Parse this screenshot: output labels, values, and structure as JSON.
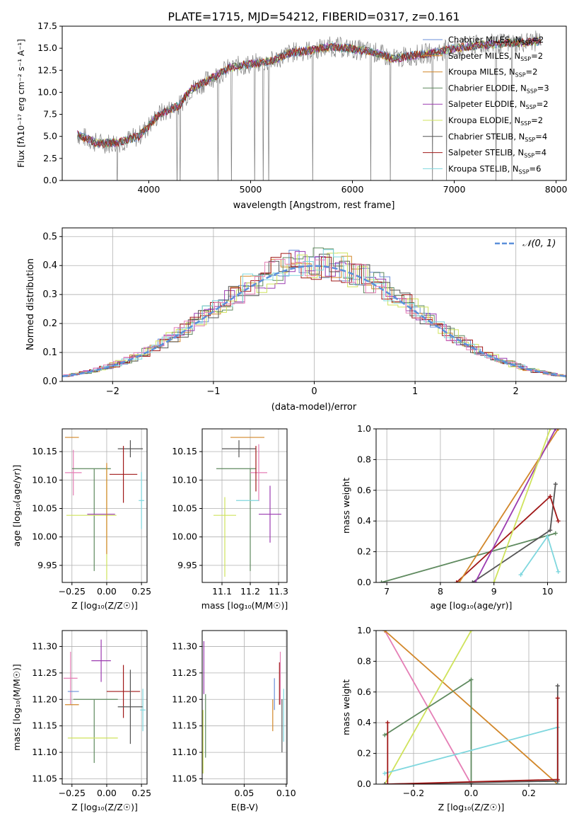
{
  "colors": {
    "Chabrier MILES": "#6a8fd9",
    "Salpeter MILES": "#e48c2f",
    "Kroupa MILES": "#d2872a",
    "Chabrier ELODIE": "#5f8a5f",
    "Salpeter ELODIE": "#9b3bb0",
    "Kroupa ELODIE": "#cfe35c",
    "Chabrier STELIB": "#555555",
    "Salpeter STELIB": "#a01818",
    "Kroupa STELIB": "#7fd7de",
    "pink": "#e57fb6",
    "normal": "#5b8fd9"
  },
  "series_names": [
    "Chabrier MILES",
    "Salpeter MILES",
    "Kroupa MILES",
    "Chabrier ELODIE",
    "Salpeter ELODIE",
    "Kroupa ELODIE",
    "Chabrier STELIB",
    "Salpeter STELIB",
    "Kroupa STELIB"
  ],
  "spectrum": {
    "title": "PLATE=1715, MJD=54212, FIBERID=0317, z=0.161",
    "xlabel": "wavelength [Angstrom, rest frame]",
    "ylabel": "Flux [fλ10⁻¹⁷ erg cm⁻² s⁻¹ A⁻¹]",
    "xticks": [
      "4000",
      "5000",
      "6000",
      "7000",
      "8000"
    ],
    "yticks": [
      "0.0",
      "2.5",
      "5.0",
      "7.5",
      "10.0",
      "12.5",
      "15.0",
      "17.5"
    ],
    "legend": [
      {
        "base": "Chabrier MILES, N",
        "sub": "SSP",
        "tail": "=2"
      },
      {
        "base": "Salpeter MILES, N",
        "sub": "SSP",
        "tail": "=2"
      },
      {
        "base": "Kroupa MILES, N",
        "sub": "SSP",
        "tail": "=2"
      },
      {
        "base": "Chabrier ELODIE, N",
        "sub": "SSP",
        "tail": "=3"
      },
      {
        "base": "Salpeter ELODIE, N",
        "sub": "SSP",
        "tail": "=2"
      },
      {
        "base": "Kroupa ELODIE, N",
        "sub": "SSP",
        "tail": "=2"
      },
      {
        "base": "Chabrier STELIB, N",
        "sub": "SSP",
        "tail": "=4"
      },
      {
        "base": "Salpeter STELIB, N",
        "sub": "SSP",
        "tail": "=4"
      },
      {
        "base": "Kroupa STELIB, N",
        "sub": "SSP",
        "tail": "=6"
      }
    ]
  },
  "histogram": {
    "xlabel": "(data-model)/error",
    "ylabel": "Normed distribution",
    "legend_label": "𝒩(0, 1)",
    "xticks": [
      "−2",
      "−1",
      "0",
      "1",
      "2"
    ],
    "yticks": [
      "0.0",
      "0.1",
      "0.2",
      "0.3",
      "0.4",
      "0.5"
    ]
  },
  "panels": {
    "age_vs_Z": {
      "xlabel": "Z [log₁₀(Z/Z☉)]",
      "ylabel": "age  [log₁₀(age/yr)]",
      "xticks": [
        "−0.25",
        "0.00",
        "0.25"
      ],
      "yticks": [
        "9.95",
        "10.00",
        "10.05",
        "10.10",
        "10.15"
      ]
    },
    "age_vs_mass": {
      "xlabel": "mass [log₁₀(M/M☉)]",
      "xticks": [
        "11.1",
        "11.2",
        "11.3"
      ],
      "yticks": [
        "9.95",
        "10.00",
        "10.05",
        "10.10",
        "10.15"
      ]
    },
    "weight_vs_age": {
      "xlabel": "age  [log₁₀(age/yr)]",
      "ylabel": "mass weight",
      "xticks": [
        "7",
        "8",
        "9",
        "10"
      ],
      "yticks": [
        "0.0",
        "0.2",
        "0.4",
        "0.6",
        "0.8",
        "1.0"
      ]
    },
    "mass_vs_Z": {
      "xlabel": "Z [log₁₀(Z/Z☉)]",
      "ylabel": "mass [log₁₀(M/M☉)]",
      "xticks": [
        "−0.25",
        "0.00",
        "0.25"
      ],
      "yticks": [
        "11.05",
        "11.10",
        "11.15",
        "11.20",
        "11.25",
        "11.30"
      ]
    },
    "mass_vs_EBV": {
      "xlabel": "E(B-V)",
      "xticks": [
        "0.05",
        "0.10"
      ],
      "yticks": [
        "11.05",
        "11.10",
        "11.15",
        "11.20",
        "11.25",
        "11.30"
      ]
    },
    "weight_vs_Z": {
      "xlabel": "Z [log₁₀(Z/Z☉)]",
      "ylabel": "mass weight",
      "xticks": [
        "−0.2",
        "0.0",
        "0.2"
      ],
      "yticks": [
        "0.0",
        "0.2",
        "0.4",
        "0.6",
        "0.8",
        "1.0"
      ]
    }
  },
  "chart_data": [
    {
      "type": "line",
      "title": "PLATE=1715, MJD=54212, FIBERID=0317, z=0.161",
      "xlabel": "wavelength [Angstrom, rest frame]",
      "ylabel": "Flux",
      "xlim": [
        3150,
        8100
      ],
      "ylim": [
        0,
        17.5
      ],
      "continuum": [
        [
          3300,
          5.2
        ],
        [
          3500,
          4.2
        ],
        [
          3700,
          4.3
        ],
        [
          3900,
          5.0
        ],
        [
          4000,
          6.2
        ],
        [
          4100,
          7.5
        ],
        [
          4300,
          8.5
        ],
        [
          4400,
          10.2
        ],
        [
          4600,
          11.5
        ],
        [
          4800,
          12.8
        ],
        [
          5000,
          13.2
        ],
        [
          5200,
          13.5
        ],
        [
          5400,
          14.5
        ],
        [
          5600,
          14.8
        ],
        [
          5800,
          15.2
        ],
        [
          6000,
          14.9
        ],
        [
          6200,
          14.6
        ],
        [
          6400,
          13.8
        ],
        [
          6600,
          14.2
        ],
        [
          6800,
          14.5
        ],
        [
          7000,
          15.0
        ],
        [
          7200,
          15.3
        ],
        [
          7400,
          15.5
        ],
        [
          7600,
          15.6
        ],
        [
          7800,
          15.8
        ]
      ],
      "series": [
        "Chabrier MILES",
        "Salpeter MILES",
        "Kroupa MILES",
        "Chabrier ELODIE",
        "Salpeter ELODIE",
        "Kroupa ELODIE",
        "Chabrier STELIB",
        "Salpeter STELIB",
        "Kroupa STELIB"
      ]
    },
    {
      "type": "bar",
      "xlabel": "(data-model)/error",
      "ylabel": "Normed distribution",
      "xlim": [
        -2.5,
        2.5
      ],
      "ylim": [
        0,
        0.53
      ],
      "bins": 50,
      "reference": "N(0,1)"
    },
    {
      "type": "scatter",
      "panel": "age_vs_Z",
      "xlim": [
        -0.32,
        0.29
      ],
      "ylim": [
        9.92,
        10.19
      ],
      "points": [
        {
          "series": "Kroupa MILES",
          "x": -0.25,
          "xerr": 0.05,
          "y": 10.175,
          "yerr": 0.0
        },
        {
          "series": "pink",
          "x": -0.24,
          "xerr": 0.06,
          "y": 10.113,
          "yerr": 0.04
        },
        {
          "series": "Chabrier ELODIE",
          "x": -0.11,
          "xerr": 0.14,
          "y": 10.12,
          "yerr": 0.0
        },
        {
          "series": "Chabrier ELODIE",
          "x": -0.09,
          "xerr": 0.0,
          "y": 10.03,
          "yerr": 0.09
        },
        {
          "series": "Kroupa ELODIE",
          "x": -0.11,
          "xerr": 0.18,
          "y": 10.038,
          "yerr": 0.0
        },
        {
          "series": "Kroupa ELODIE",
          "x": 0.0,
          "xerr": 0.0,
          "y": 10.025,
          "yerr": 0.1
        },
        {
          "series": "Salpeter ELODIE",
          "x": -0.04,
          "xerr": 0.1,
          "y": 10.04,
          "yerr": 0.0
        },
        {
          "series": "Kroupa MILES",
          "x": 0.0,
          "xerr": 0.0,
          "y": 10.05,
          "yerr": 0.08
        },
        {
          "series": "Chabrier STELIB",
          "x": 0.17,
          "xerr": 0.09,
          "y": 10.155,
          "yerr": 0.015
        },
        {
          "series": "Salpeter STELIB",
          "x": 0.12,
          "xerr": 0.1,
          "y": 10.11,
          "yerr": 0.05
        },
        {
          "series": "Kroupa STELIB",
          "x": 0.25,
          "xerr": 0.02,
          "y": 10.064,
          "yerr": 0.05
        }
      ]
    },
    {
      "type": "scatter",
      "panel": "age_vs_mass",
      "xlim": [
        11.03,
        11.33
      ],
      "ylim": [
        9.92,
        10.19
      ],
      "points": [
        {
          "series": "Kroupa MILES",
          "x": 11.19,
          "xerr": 0.06,
          "y": 10.175,
          "yerr": 0.0
        },
        {
          "series": "Chabrier STELIB",
          "x": 11.16,
          "xerr": 0.06,
          "y": 10.155,
          "yerr": 0.015
        },
        {
          "series": "Chabrier ELODIE",
          "x": 11.15,
          "xerr": 0.07,
          "y": 10.12,
          "yerr": 0.0
        },
        {
          "series": "Chabrier ELODIE",
          "x": 11.2,
          "xerr": 0.0,
          "y": 10.03,
          "yerr": 0.09
        },
        {
          "series": "pink",
          "x": 11.23,
          "xerr": 0.03,
          "y": 10.113,
          "yerr": 0.05
        },
        {
          "series": "Salpeter ELODIE",
          "x": 11.27,
          "xerr": 0.04,
          "y": 10.04,
          "yerr": 0.05
        },
        {
          "series": "Kroupa ELODIE",
          "x": 11.11,
          "xerr": 0.04,
          "y": 10.038,
          "yerr": 0.0
        },
        {
          "series": "Kroupa ELODIE",
          "x": 11.11,
          "xerr": 0.0,
          "y": 10.0,
          "yerr": 0.07
        },
        {
          "series": "Kroupa STELIB",
          "x": 11.19,
          "xerr": 0.04,
          "y": 10.064,
          "yerr": 0.0
        },
        {
          "series": "Salpeter STELIB",
          "x": 11.22,
          "xerr": 0.0,
          "y": 10.12,
          "yerr": 0.04
        }
      ]
    },
    {
      "type": "line",
      "panel": "weight_vs_age",
      "xlim": [
        6.8,
        10.35
      ],
      "ylim": [
        0,
        1
      ],
      "series": [
        {
          "name": "Chabrier ELODIE",
          "x": [
            6.9,
            10.15
          ],
          "y": [
            0.0,
            0.32
          ]
        },
        {
          "name": "Chabrier STELIB",
          "x": [
            8.6,
            10.05,
            10.15
          ],
          "y": [
            0.0,
            0.34,
            0.64
          ]
        },
        {
          "name": "Salpeter STELIB",
          "x": [
            8.3,
            10.05,
            10.2
          ],
          "y": [
            0.0,
            0.56,
            0.4
          ]
        },
        {
          "name": "Kroupa MILES",
          "x": [
            8.35,
            10.2
          ],
          "y": [
            0.0,
            1.0
          ]
        },
        {
          "name": "Salpeter ELODIE",
          "x": [
            8.65,
            10.15
          ],
          "y": [
            0.0,
            1.0
          ]
        },
        {
          "name": "Kroupa ELODIE",
          "x": [
            9.0,
            10.05
          ],
          "y": [
            0.0,
            1.0
          ]
        },
        {
          "name": "Kroupa STELIB",
          "x": [
            9.5,
            10.0,
            10.2
          ],
          "y": [
            0.05,
            0.3,
            0.07
          ]
        }
      ]
    },
    {
      "type": "scatter",
      "panel": "mass_vs_Z",
      "xlim": [
        -0.32,
        0.29
      ],
      "ylim": [
        11.04,
        11.33
      ],
      "points": [
        {
          "series": "pink",
          "x": -0.26,
          "xerr": 0.05,
          "y": 11.24,
          "yerr": 0.05
        },
        {
          "series": "Chabrier MILES",
          "x": -0.24,
          "xerr": 0.04,
          "y": 11.215,
          "yerr": 0.0
        },
        {
          "series": "Kroupa MILES",
          "x": -0.25,
          "xerr": 0.05,
          "y": 11.19,
          "yerr": 0.0
        },
        {
          "series": "Chabrier ELODIE",
          "x": -0.08,
          "xerr": 0.16,
          "y": 11.2,
          "yerr": 0.0
        },
        {
          "series": "Chabrier ELODIE",
          "x": -0.09,
          "xerr": 0.0,
          "y": 11.14,
          "yerr": 0.06
        },
        {
          "series": "Salpeter ELODIE",
          "x": -0.04,
          "xerr": 0.07,
          "y": 11.273,
          "yerr": 0.04
        },
        {
          "series": "Kroupa ELODIE",
          "x": -0.1,
          "xerr": 0.18,
          "y": 11.127,
          "yerr": 0.0
        },
        {
          "series": "Salpeter STELIB",
          "x": 0.12,
          "xerr": 0.12,
          "y": 11.215,
          "yerr": 0.05
        },
        {
          "series": "Chabrier STELIB",
          "x": 0.17,
          "xerr": 0.09,
          "y": 11.186,
          "yerr": 0.07
        },
        {
          "series": "Kroupa STELIB",
          "x": 0.26,
          "xerr": 0.02,
          "y": 11.18,
          "yerr": 0.04
        }
      ]
    },
    {
      "type": "scatter",
      "panel": "mass_vs_EBV",
      "xlim": [
        0.0,
        0.101
      ],
      "ylim": [
        11.04,
        11.33
      ],
      "points": [
        {
          "series": "Salpeter ELODIE",
          "x": 0.002,
          "y": 11.26,
          "yerr": 0.05
        },
        {
          "series": "Chabrier ELODIE",
          "x": 0.004,
          "y": 11.15,
          "yerr": 0.06
        },
        {
          "series": "Kroupa ELODIE",
          "x": 0.001,
          "y": 11.12,
          "yerr": 0.06
        },
        {
          "series": "Kroupa MILES",
          "x": 0.084,
          "y": 11.17,
          "yerr": 0.03
        },
        {
          "series": "Chabrier MILES",
          "x": 0.086,
          "y": 11.21,
          "yerr": 0.03
        },
        {
          "series": "Salpeter STELIB",
          "x": 0.092,
          "y": 11.23,
          "yerr": 0.04
        },
        {
          "series": "pink",
          "x": 0.093,
          "y": 11.24,
          "yerr": 0.05
        },
        {
          "series": "Chabrier STELIB",
          "x": 0.095,
          "y": 11.15,
          "yerr": 0.05
        },
        {
          "series": "Kroupa STELIB",
          "x": 0.097,
          "y": 11.17,
          "yerr": 0.05
        }
      ]
    },
    {
      "type": "line",
      "panel": "weight_vs_Z",
      "xlim": [
        -0.33,
        0.33
      ],
      "ylim": [
        0,
        1
      ],
      "series": [
        {
          "name": "pink",
          "x": [
            -0.3,
            0.0
          ],
          "y": [
            1.0,
            0.0
          ]
        },
        {
          "name": "Kroupa MILES",
          "x": [
            -0.3,
            0.3
          ],
          "y": [
            1.0,
            0.0
          ]
        },
        {
          "name": "Kroupa ELODIE",
          "x": [
            -0.3,
            0.0
          ],
          "y": [
            0.0,
            1.0
          ]
        },
        {
          "name": "Chabrier ELODIE",
          "x": [
            -0.3,
            0.0,
            0.0
          ],
          "y": [
            0.32,
            0.68,
            0.0
          ]
        },
        {
          "name": "Kroupa STELIB",
          "x": [
            -0.3,
            0.3,
            0.3
          ],
          "y": [
            0.07,
            0.37,
            0.0
          ]
        },
        {
          "name": "Chabrier STELIB",
          "x": [
            -0.3,
            0.3,
            0.3
          ],
          "y": [
            0.0,
            0.02,
            0.64
          ]
        },
        {
          "name": "Salpeter STELIB",
          "x": [
            -0.29,
            -0.29,
            0.3,
            0.3
          ],
          "y": [
            0.4,
            0.0,
            0.03,
            0.56
          ]
        }
      ]
    }
  ]
}
